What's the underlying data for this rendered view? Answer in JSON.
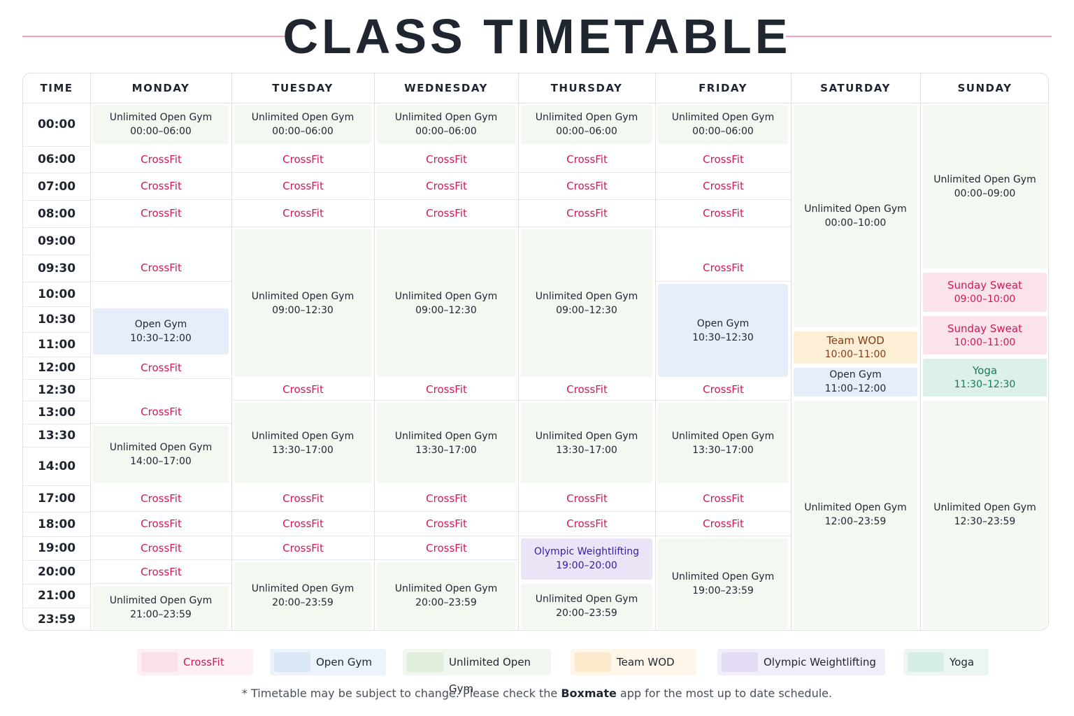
{
  "title": "CLASS TIMETABLE",
  "headers": {
    "time": "TIME",
    "days": [
      "MONDAY",
      "TUESDAY",
      "WEDNESDAY",
      "THURSDAY",
      "FRIDAY",
      "SATURDAY",
      "SUNDAY"
    ]
  },
  "time_labels": [
    "00:00",
    "06:00",
    "07:00",
    "08:00",
    "09:00",
    "09:30",
    "10:00",
    "10:30",
    "11:00",
    "12:00",
    "12:30",
    "13:00",
    "13:30",
    "14:00",
    "17:00",
    "18:00",
    "19:00",
    "20:00",
    "21:00",
    "23:59"
  ],
  "class_colors": {
    "crossfit": "#d0185a",
    "open_gym": "#1f2630",
    "unlimited": "#1f2630",
    "team_wod": "#8a3a12",
    "olympic": "#3a1aa0",
    "yoga": "#137a5e",
    "sunday_sweat": "#d0185a"
  },
  "schedule": {
    "monday": [
      {
        "name": "Unlimited Open Gym",
        "time": "00:00–06:00"
      },
      {
        "name": "CrossFit"
      },
      {
        "name": "CrossFit"
      },
      {
        "name": "CrossFit"
      },
      {
        "name": "CrossFit"
      },
      {
        "name": "Open Gym",
        "time": "10:30–12:00"
      },
      {
        "name": "CrossFit"
      },
      {
        "name": "CrossFit"
      },
      {
        "name": "Unlimited Open Gym",
        "time": "14:00–17:00"
      },
      {
        "name": "CrossFit"
      },
      {
        "name": "CrossFit"
      },
      {
        "name": "CrossFit"
      },
      {
        "name": "CrossFit"
      },
      {
        "name": "Unlimited Open Gym",
        "time": "21:00–23:59"
      }
    ],
    "tuesday": [
      {
        "name": "Unlimited Open Gym",
        "time": "00:00–06:00"
      },
      {
        "name": "CrossFit"
      },
      {
        "name": "CrossFit"
      },
      {
        "name": "CrossFit"
      },
      {
        "name": "Unlimited Open Gym",
        "time": "09:00–12:30"
      },
      {
        "name": "CrossFit"
      },
      {
        "name": "Unlimited Open Gym",
        "time": "13:30–17:00"
      },
      {
        "name": "CrossFit"
      },
      {
        "name": "CrossFit"
      },
      {
        "name": "CrossFit"
      },
      {
        "name": "Unlimited Open Gym",
        "time": "20:00–23:59"
      }
    ],
    "wednesday": [
      {
        "name": "Unlimited Open Gym",
        "time": "00:00–06:00"
      },
      {
        "name": "CrossFit"
      },
      {
        "name": "CrossFit"
      },
      {
        "name": "CrossFit"
      },
      {
        "name": "Unlimited Open Gym",
        "time": "09:00–12:30"
      },
      {
        "name": "CrossFit"
      },
      {
        "name": "Unlimited Open Gym",
        "time": "13:30–17:00"
      },
      {
        "name": "CrossFit"
      },
      {
        "name": "CrossFit"
      },
      {
        "name": "CrossFit"
      },
      {
        "name": "Unlimited Open Gym",
        "time": "20:00–23:59"
      }
    ],
    "thursday": [
      {
        "name": "Unlimited Open Gym",
        "time": "00:00–06:00"
      },
      {
        "name": "CrossFit"
      },
      {
        "name": "CrossFit"
      },
      {
        "name": "CrossFit"
      },
      {
        "name": "Unlimited Open Gym",
        "time": "09:00–12:30"
      },
      {
        "name": "CrossFit"
      },
      {
        "name": "Unlimited Open Gym",
        "time": "13:30–17:00"
      },
      {
        "name": "CrossFit"
      },
      {
        "name": "CrossFit"
      },
      {
        "name": "Olympic Weightlifting",
        "time": "19:00–20:00"
      },
      {
        "name": "Unlimited Open Gym",
        "time": "20:00–23:59"
      }
    ],
    "friday": [
      {
        "name": "Unlimited Open Gym",
        "time": "00:00–06:00"
      },
      {
        "name": "CrossFit"
      },
      {
        "name": "CrossFit"
      },
      {
        "name": "CrossFit"
      },
      {
        "name": "CrossFit"
      },
      {
        "name": "Open Gym",
        "time": "10:30–12:30"
      },
      {
        "name": "CrossFit"
      },
      {
        "name": "Unlimited Open Gym",
        "time": "13:30–17:00"
      },
      {
        "name": "CrossFit"
      },
      {
        "name": "CrossFit"
      },
      {
        "name": "Unlimited Open Gym",
        "time": "19:00–23:59"
      }
    ],
    "saturday": [
      {
        "name": "Unlimited Open Gym",
        "time": "00:00–10:00"
      },
      {
        "name": "Team WOD",
        "time": "10:00–11:00"
      },
      {
        "name": "Open Gym",
        "time": "11:00–12:00"
      },
      {
        "name": "Unlimited Open Gym",
        "time": "12:00–23:59"
      }
    ],
    "sunday": [
      {
        "name": "Unlimited Open Gym",
        "time": "00:00–09:00"
      },
      {
        "name": "Sunday Sweat",
        "time": "09:00–10:00"
      },
      {
        "name": "Sunday Sweat",
        "time": "10:00–11:00"
      },
      {
        "name": "Yoga",
        "time": "11:30–12:30"
      },
      {
        "name": "Unlimited Open Gym",
        "time": "12:30–23:59"
      }
    ]
  },
  "legend": [
    {
      "label": "CrossFit",
      "swatch": "#fbe0e7",
      "bg": "#fdf0f3",
      "text": "#d0185a"
    },
    {
      "label": "Open Gym",
      "swatch": "#d8e6f6",
      "bg": "#ecf3fb",
      "text": "#1f2630"
    },
    {
      "label": "Unlimited Open Gym",
      "swatch": "#e0eedb",
      "bg": "#f1f7ef",
      "text": "#1f2630"
    },
    {
      "label": "Team WOD",
      "swatch": "#fde9cc",
      "bg": "#fef6e9",
      "text": "#1f2630"
    },
    {
      "label": "Olympic Weightlifting",
      "swatch": "#e3dcf4",
      "bg": "#f1edf9",
      "text": "#1f2630"
    },
    {
      "label": "Yoga",
      "swatch": "#d6eee6",
      "bg": "#ebf6f2",
      "text": "#1f2630"
    }
  ],
  "footnote": {
    "before": "* Timetable may be subject to change. Please check the ",
    "brand": "Boxmate",
    "after": " app for the most up to date schedule."
  }
}
